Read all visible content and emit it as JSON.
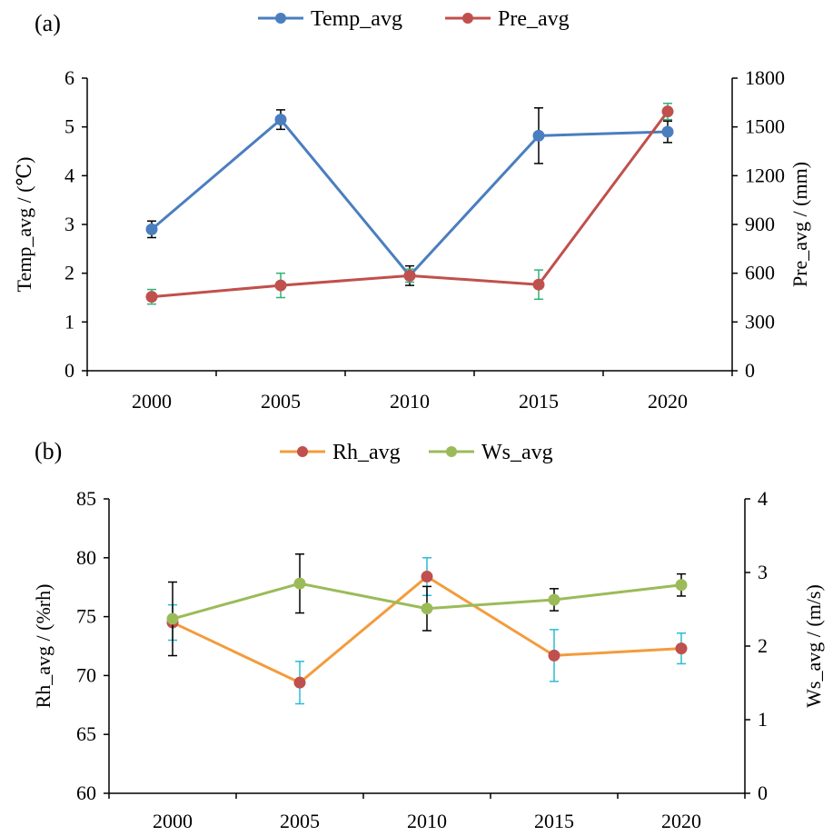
{
  "chart_data": [
    {
      "panel_label": "(a)",
      "type": "line",
      "x": [
        2000,
        2005,
        2010,
        2015,
        2020
      ],
      "x_tick_labels": [
        "2000",
        "2005",
        "2010",
        "2015",
        "2020"
      ],
      "legend_position": "top",
      "grid": false,
      "y_left": {
        "label": "Temp_avg / (℃)",
        "range": [
          0,
          6
        ],
        "ticks": [
          0,
          1,
          2,
          3,
          4,
          5,
          6
        ],
        "tick_labels": [
          "0",
          "1",
          "2",
          "3",
          "4",
          "5",
          "6"
        ]
      },
      "y_right": {
        "label": "Pre_avg / (mm)",
        "range": [
          0,
          1800
        ],
        "ticks": [
          0,
          300,
          600,
          900,
          1200,
          1500,
          1800
        ],
        "tick_labels": [
          "0",
          "300",
          "600",
          "900",
          "1200",
          "1500",
          "1800"
        ]
      },
      "series": [
        {
          "name": "Temp_avg",
          "axis": "left",
          "color": "#4a7ebf",
          "error_bar_color": "#000000",
          "values": [
            2.9,
            5.15,
            1.95,
            4.82,
            4.9
          ],
          "errors": [
            0.17,
            0.2,
            0.2,
            0.57,
            0.22
          ]
        },
        {
          "name": "Pre_avg",
          "axis": "right",
          "color": "#c0504d",
          "error_bar_color": "#2db37a",
          "values": [
            455,
            525,
            585,
            530,
            1595
          ],
          "errors": [
            45,
            75,
            40,
            90,
            50
          ]
        }
      ]
    },
    {
      "panel_label": "(b)",
      "type": "line",
      "x": [
        2000,
        2005,
        2010,
        2015,
        2020
      ],
      "x_tick_labels": [
        "2000",
        "2005",
        "2010",
        "2015",
        "2020"
      ],
      "legend_position": "top",
      "grid": false,
      "y_left": {
        "label": "Rh_avg / (%rh)",
        "range": [
          60,
          85
        ],
        "ticks": [
          60,
          65,
          70,
          75,
          80,
          85
        ],
        "tick_labels": [
          "60",
          "65",
          "70",
          "75",
          "80",
          "85"
        ]
      },
      "y_right": {
        "label": "Ws_avg / (m/s)",
        "range": [
          0,
          4
        ],
        "ticks": [
          0,
          1,
          2,
          3,
          4
        ],
        "tick_labels": [
          "0",
          "1",
          "2",
          "3",
          "4"
        ]
      },
      "series": [
        {
          "name": "Rh_avg",
          "axis": "left",
          "color": "#f39c3c",
          "marker_color": "#c0504d",
          "error_bar_color": "#29bcd6",
          "values": [
            74.5,
            69.4,
            78.4,
            71.7,
            72.3
          ],
          "errors": [
            1.5,
            1.8,
            1.6,
            2.2,
            1.3
          ]
        },
        {
          "name": "Ws_avg",
          "axis": "right",
          "color": "#9bbb59",
          "error_bar_color": "#000000",
          "values": [
            2.37,
            2.85,
            2.51,
            2.63,
            2.83
          ],
          "errors": [
            0.5,
            0.4,
            0.3,
            0.15,
            0.15
          ]
        }
      ]
    }
  ]
}
